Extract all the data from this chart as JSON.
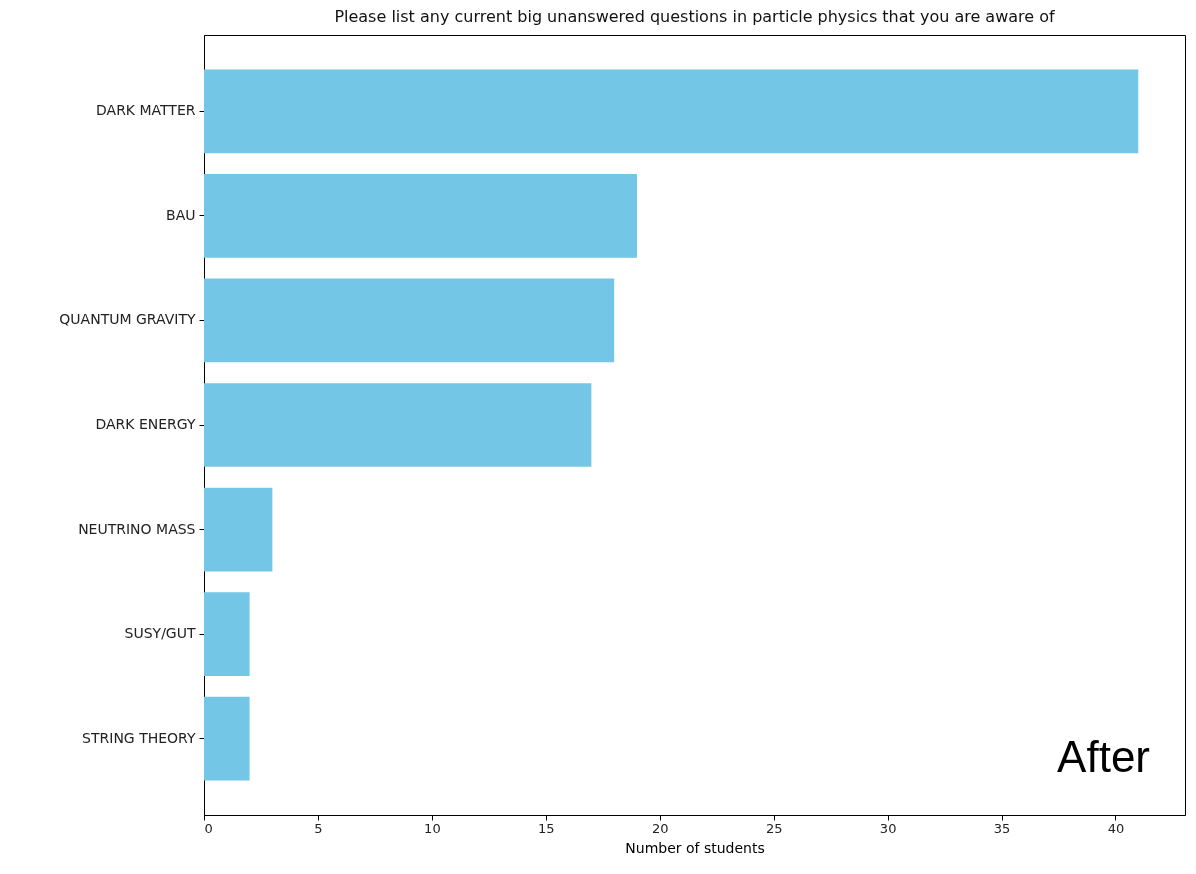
{
  "chart_data": {
    "type": "bar",
    "orientation": "horizontal",
    "title": "Please list any current big unanswered questions in particle physics that you are aware of",
    "xlabel": "Number of students",
    "categories": [
      "DARK MATTER",
      "BAU",
      "QUANTUM GRAVITY",
      "DARK ENERGY",
      "NEUTRINO MASS",
      "SUSY/GUT",
      "STRING THEORY"
    ],
    "values": [
      41,
      19,
      18,
      17,
      3,
      2,
      2
    ],
    "color": "#73c6e6",
    "xlim": [
      0,
      43.05
    ],
    "xticks": [
      0,
      5,
      10,
      15,
      20,
      25,
      30,
      35,
      40
    ],
    "grid": false,
    "annotations": [
      "After"
    ]
  }
}
